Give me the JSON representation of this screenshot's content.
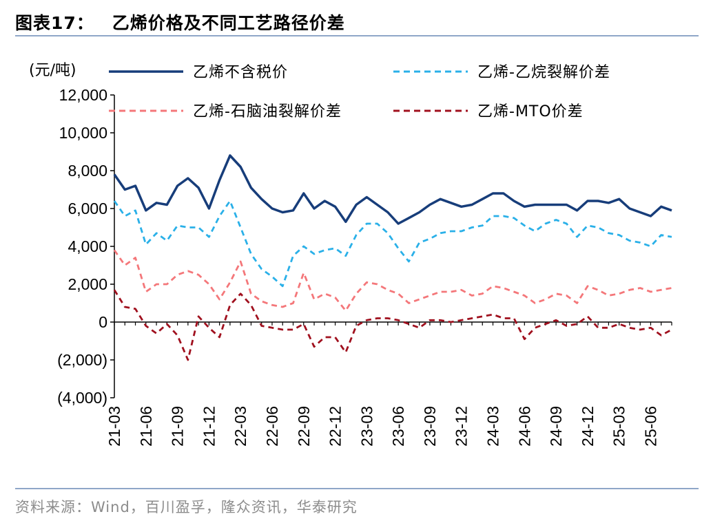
{
  "header": {
    "figure_number": "图表17：",
    "title": "乙烯价格及不同工艺路径价差"
  },
  "footer": {
    "source": "资料来源：Wind，百川盈孚，隆众资讯，华泰研究"
  },
  "chart_data": {
    "type": "line",
    "title": "乙烯价格及不同工艺路径价差",
    "unit_label": "(元/吨)",
    "ylim": [
      -4000,
      12000
    ],
    "yticks": [
      -4000,
      -2000,
      0,
      2000,
      4000,
      6000,
      8000,
      10000,
      12000
    ],
    "ytick_labels": [
      "(4,000)",
      "(2,000)",
      "0",
      "2,000",
      "4,000",
      "6,000",
      "8,000",
      "10,000",
      "12,000"
    ],
    "xlim": [
      "2021-03",
      "2025-08"
    ],
    "xtick_labels": [
      "21-03",
      "21-06",
      "21-09",
      "21-12",
      "22-03",
      "22-06",
      "22-09",
      "22-12",
      "23-03",
      "23-06",
      "23-09",
      "23-12",
      "24-03",
      "24-06",
      "24-09",
      "24-12",
      "25-03",
      "25-06"
    ],
    "grid": false,
    "legend_position": "top",
    "x": [
      "2021-03",
      "2021-04",
      "2021-05",
      "2021-06",
      "2021-07",
      "2021-08",
      "2021-09",
      "2021-10",
      "2021-11",
      "2021-12",
      "2022-01",
      "2022-02",
      "2022-03",
      "2022-04",
      "2022-05",
      "2022-06",
      "2022-07",
      "2022-08",
      "2022-09",
      "2022-10",
      "2022-11",
      "2022-12",
      "2023-01",
      "2023-02",
      "2023-03",
      "2023-04",
      "2023-05",
      "2023-06",
      "2023-07",
      "2023-08",
      "2023-09",
      "2023-10",
      "2023-11",
      "2023-12",
      "2024-01",
      "2024-02",
      "2024-03",
      "2024-04",
      "2024-05",
      "2024-06",
      "2024-07",
      "2024-08",
      "2024-09",
      "2024-10",
      "2024-11",
      "2024-12",
      "2025-01",
      "2025-02",
      "2025-03",
      "2025-04",
      "2025-05",
      "2025-06",
      "2025-07",
      "2025-08"
    ],
    "series": [
      {
        "name": "乙烯不含税价",
        "color": "#173d7a",
        "dash": "solid",
        "values": [
          7800,
          7000,
          7200,
          5900,
          6300,
          6200,
          7200,
          7600,
          7100,
          6000,
          7500,
          8800,
          8200,
          7100,
          6500,
          6000,
          5800,
          5900,
          6800,
          6000,
          6400,
          6100,
          5300,
          6200,
          6600,
          6200,
          5800,
          5200,
          5500,
          5800,
          6200,
          6500,
          6300,
          6100,
          6200,
          6500,
          6800,
          6800,
          6400,
          6100,
          6200,
          6200,
          6200,
          6200,
          5900,
          6400,
          6400,
          6300,
          6500,
          6000,
          5800,
          5600,
          6100,
          5900
        ]
      },
      {
        "name": "乙烯-乙烷裂解价差",
        "color": "#2ab0e8",
        "dash": "dashed",
        "values": [
          6400,
          5600,
          5900,
          4100,
          4700,
          4300,
          5100,
          5000,
          5000,
          4500,
          5600,
          6400,
          5000,
          3600,
          2800,
          2400,
          1900,
          3500,
          4000,
          3600,
          3800,
          3900,
          3500,
          4600,
          5200,
          5200,
          4700,
          3900,
          3200,
          4200,
          4400,
          4700,
          4800,
          4800,
          5000,
          5100,
          5600,
          5600,
          5500,
          5100,
          4800,
          5200,
          5400,
          5200,
          4500,
          5100,
          5000,
          4700,
          4600,
          4300,
          4200,
          4000,
          4600,
          4500
        ]
      },
      {
        "name": "乙烯-石脑油裂解价差",
        "color": "#f4777a",
        "dash": "dashed",
        "values": [
          3800,
          3000,
          3400,
          1600,
          2000,
          2000,
          2500,
          2700,
          2500,
          2000,
          1200,
          2100,
          3200,
          1500,
          1100,
          900,
          800,
          1000,
          2600,
          1200,
          1500,
          1300,
          600,
          1500,
          2100,
          2000,
          1700,
          1500,
          1000,
          1200,
          1400,
          1600,
          1600,
          1700,
          1400,
          1500,
          1900,
          1800,
          1600,
          1400,
          1000,
          1200,
          1500,
          1400,
          1000,
          1900,
          1700,
          1400,
          1500,
          1700,
          1800,
          1600,
          1700,
          1800
        ]
      },
      {
        "name": "乙烯-MTO价差",
        "color": "#a0101e",
        "dash": "dashed",
        "values": [
          1700,
          800,
          700,
          -200,
          -600,
          -100,
          -700,
          -2000,
          300,
          -300,
          -800,
          900,
          1500,
          900,
          -200,
          -300,
          -400,
          -400,
          -100,
          -1300,
          -800,
          -800,
          -1600,
          -200,
          100,
          200,
          200,
          100,
          -100,
          -300,
          100,
          100,
          0,
          100,
          200,
          300,
          400,
          200,
          200,
          -900,
          -300,
          -100,
          100,
          -200,
          -100,
          300,
          -300,
          -300,
          -100,
          -300,
          -400,
          -300,
          -700,
          -400
        ]
      }
    ]
  }
}
